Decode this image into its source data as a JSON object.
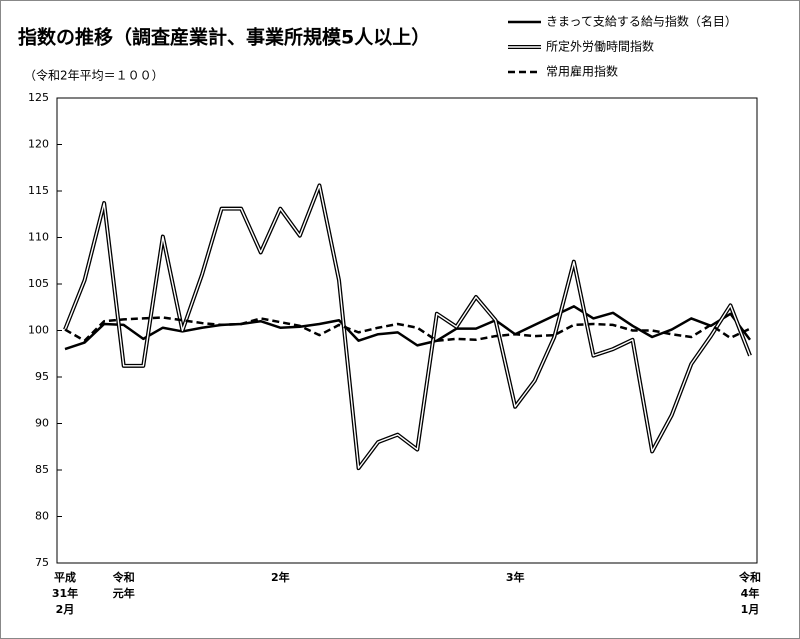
{
  "chart_data": {
    "type": "line",
    "title": "指数の推移（調査産業計、事業所規模5人以上）",
    "subtitle": "（令和2年平均＝１００）",
    "categories": [
      [
        "平成",
        "31年",
        "2月"
      ],
      null,
      null,
      [
        "令和",
        "元年"
      ],
      null,
      null,
      null,
      null,
      null,
      null,
      null,
      [
        "2年"
      ],
      null,
      null,
      null,
      null,
      null,
      null,
      null,
      null,
      null,
      null,
      null,
      [
        "3年"
      ],
      null,
      null,
      null,
      null,
      null,
      null,
      null,
      null,
      null,
      null,
      null,
      [
        "令和",
        "4年",
        "1月"
      ]
    ],
    "ylim": [
      75,
      125
    ],
    "yticks": [
      75,
      80,
      85,
      90,
      95,
      100,
      105,
      110,
      115,
      120,
      125
    ],
    "grid": false,
    "legend": "top-right",
    "series": [
      {
        "name": "きまって支給する給与指数（名目）",
        "color": "#000000",
        "style": "solid",
        "values": [
          98.0,
          98.7,
          100.7,
          100.6,
          99.1,
          100.3,
          99.9,
          100.3,
          100.6,
          100.7,
          101.0,
          100.3,
          100.4,
          100.7,
          101.1,
          98.9,
          99.6,
          99.8,
          98.4,
          98.9,
          100.2,
          100.2,
          101.1,
          99.6,
          100.6,
          101.6,
          102.6,
          101.3,
          101.9,
          100.5,
          99.3,
          100.1,
          101.3,
          100.5,
          101.8,
          99.0
        ]
      },
      {
        "name": "所定外労働時間指数",
        "color": "#000000",
        "style": "double",
        "values": [
          100.1,
          105.4,
          113.7,
          96.2,
          96.2,
          110.1,
          100.0,
          106.0,
          113.1,
          113.1,
          108.4,
          113.1,
          110.2,
          115.6,
          105.4,
          85.2,
          88.0,
          88.8,
          87.2,
          101.8,
          100.4,
          103.6,
          101.1,
          91.8,
          94.6,
          99.3,
          107.4,
          97.3,
          98.0,
          99.0,
          87.0,
          90.9,
          96.4,
          99.4,
          102.7,
          97.3
        ]
      },
      {
        "name": "常用雇用指数",
        "color": "#000000",
        "style": "dashed",
        "values": [
          100.1,
          98.9,
          101.0,
          101.2,
          101.3,
          101.4,
          101.1,
          100.8,
          100.6,
          100.7,
          101.3,
          100.9,
          100.5,
          99.5,
          100.6,
          99.8,
          100.3,
          100.7,
          100.3,
          98.9,
          99.1,
          99.0,
          99.4,
          99.6,
          99.4,
          99.5,
          100.6,
          100.7,
          100.6,
          100.0,
          100.0,
          99.6,
          99.3,
          100.6,
          99.2,
          100.2
        ]
      }
    ]
  }
}
